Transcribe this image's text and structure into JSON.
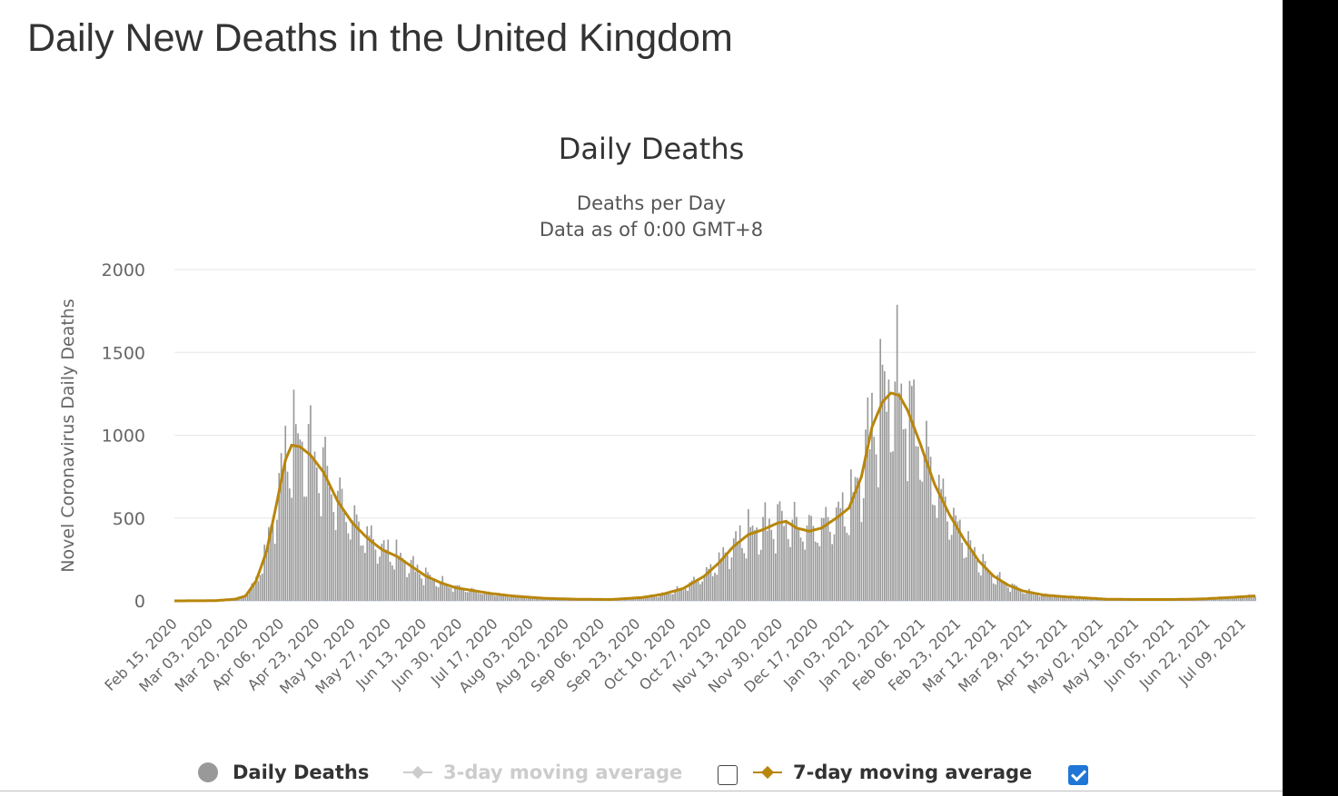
{
  "page_title": "Daily New Deaths in the United Kingdom",
  "chart_data": {
    "type": "bar",
    "title": "Daily Deaths",
    "subtitle_line1": "Deaths per Day",
    "subtitle_line2": "Data as of 0:00 GMT+8",
    "ylabel": "Novel Coronavirus Daily Deaths",
    "ylim": [
      0,
      2000
    ],
    "yticks": [
      "0",
      "500",
      "1000",
      "1500",
      "2000"
    ],
    "date_range": [
      "2020-02-15",
      "2021-07-15"
    ],
    "xtick_labels": [
      "Feb 15, 2020",
      "Mar 03, 2020",
      "Mar 20, 2020",
      "Apr 06, 2020",
      "Apr 23, 2020",
      "May 10, 2020",
      "May 27, 2020",
      "Jun 13, 2020",
      "Jun 30, 2020",
      "Jul 17, 2020",
      "Aug 03, 2020",
      "Aug 20, 2020",
      "Sep 06, 2020",
      "Sep 23, 2020",
      "Oct 10, 2020",
      "Oct 27, 2020",
      "Nov 13, 2020",
      "Nov 30, 2020",
      "Dec 17, 2020",
      "Jan 03, 2021",
      "Jan 20, 2021",
      "Feb 06, 2021",
      "Feb 23, 2021",
      "Mar 12, 2021",
      "Mar 29, 2021",
      "Apr 15, 2021",
      "May 02, 2021",
      "May 19, 2021",
      "Jun 05, 2021",
      "Jun 22, 2021",
      "Jul 09, 2021"
    ],
    "trend_points": [
      [
        "2020-02-15",
        0
      ],
      [
        "2020-03-05",
        1
      ],
      [
        "2020-03-15",
        10
      ],
      [
        "2020-03-20",
        30
      ],
      [
        "2020-03-25",
        120
      ],
      [
        "2020-03-30",
        300
      ],
      [
        "2020-04-04",
        600
      ],
      [
        "2020-04-08",
        850
      ],
      [
        "2020-04-11",
        940
      ],
      [
        "2020-04-15",
        930
      ],
      [
        "2020-04-20",
        880
      ],
      [
        "2020-04-26",
        780
      ],
      [
        "2020-05-03",
        600
      ],
      [
        "2020-05-10",
        470
      ],
      [
        "2020-05-17",
        380
      ],
      [
        "2020-05-24",
        310
      ],
      [
        "2020-05-31",
        270
      ],
      [
        "2020-06-07",
        210
      ],
      [
        "2020-06-14",
        150
      ],
      [
        "2020-06-21",
        110
      ],
      [
        "2020-06-28",
        80
      ],
      [
        "2020-07-05",
        65
      ],
      [
        "2020-07-15",
        45
      ],
      [
        "2020-07-25",
        30
      ],
      [
        "2020-08-10",
        15
      ],
      [
        "2020-08-25",
        10
      ],
      [
        "2020-09-10",
        8
      ],
      [
        "2020-09-25",
        20
      ],
      [
        "2020-10-05",
        40
      ],
      [
        "2020-10-15",
        75
      ],
      [
        "2020-10-25",
        150
      ],
      [
        "2020-11-01",
        230
      ],
      [
        "2020-11-08",
        330
      ],
      [
        "2020-11-15",
        400
      ],
      [
        "2020-11-22",
        430
      ],
      [
        "2020-11-29",
        470
      ],
      [
        "2020-12-03",
        480
      ],
      [
        "2020-12-08",
        440
      ],
      [
        "2020-12-14",
        420
      ],
      [
        "2020-12-20",
        440
      ],
      [
        "2020-12-27",
        500
      ],
      [
        "2021-01-02",
        560
      ],
      [
        "2021-01-08",
        750
      ],
      [
        "2021-01-13",
        1050
      ],
      [
        "2021-01-18",
        1200
      ],
      [
        "2021-01-22",
        1255
      ],
      [
        "2021-01-26",
        1240
      ],
      [
        "2021-01-30",
        1150
      ],
      [
        "2021-02-05",
        950
      ],
      [
        "2021-02-12",
        700
      ],
      [
        "2021-02-19",
        520
      ],
      [
        "2021-02-26",
        370
      ],
      [
        "2021-03-05",
        240
      ],
      [
        "2021-03-12",
        150
      ],
      [
        "2021-03-19",
        95
      ],
      [
        "2021-03-26",
        60
      ],
      [
        "2021-04-05",
        35
      ],
      [
        "2021-04-15",
        25
      ],
      [
        "2021-04-25",
        18
      ],
      [
        "2021-05-05",
        10
      ],
      [
        "2021-05-20",
        8
      ],
      [
        "2021-06-05",
        8
      ],
      [
        "2021-06-20",
        12
      ],
      [
        "2021-07-05",
        22
      ],
      [
        "2021-07-15",
        30
      ]
    ],
    "series": [
      {
        "name": "Daily Deaths",
        "color": "#999999",
        "visible": true
      },
      {
        "name": "3-day moving average",
        "color": "#cccccc",
        "visible": false,
        "checkbox_checked": false
      },
      {
        "name": "7-day moving average",
        "color": "#b8860b",
        "visible": true,
        "checkbox_checked": true
      }
    ],
    "grid": true
  }
}
